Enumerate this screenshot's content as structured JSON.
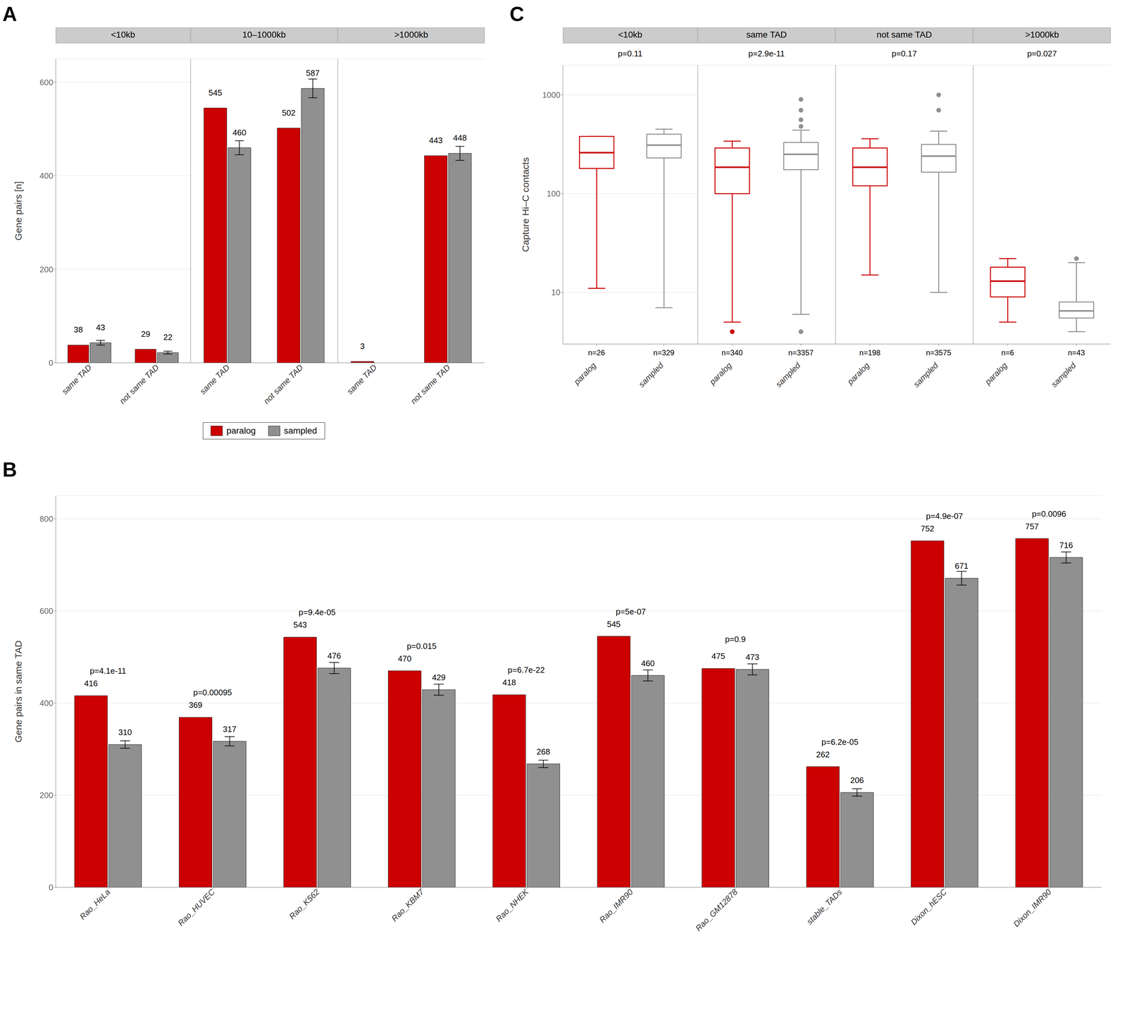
{
  "chart_data": [
    {
      "type": "bar",
      "panel_label": "A",
      "ylabel": "Gene pairs [n]",
      "ylim": [
        0,
        650
      ],
      "yticks": [
        0,
        200,
        400,
        600
      ],
      "grid": true,
      "data_labels": true,
      "legend": "bottom",
      "facets": [
        {
          "title": "<10kb",
          "categories": [
            "same TAD",
            "not same TAD"
          ],
          "series": [
            {
              "name": "paralog",
              "color": "#CC0000",
              "values": [
                38,
                29
              ]
            },
            {
              "name": "sampled",
              "color": "#909090",
              "values": [
                43,
                22
              ],
              "errors": [
                5,
                3
              ]
            }
          ]
        },
        {
          "title": "10–1000kb",
          "tick_labels": "x",
          "categories": [
            "same TAD",
            "not same TAD"
          ],
          "series": [
            {
              "name": "paralog",
              "color": "#CC0000",
              "values": [
                545,
                502
              ]
            },
            {
              "name": "sampled",
              "color": "#909090",
              "values": [
                460,
                587
              ],
              "errors": [
                15,
                20
              ]
            }
          ]
        },
        {
          "title": ">1000kb",
          "tick_labels": "x",
          "categories": [
            "same TAD",
            "not same TAD"
          ],
          "series": [
            {
              "name": "paralog",
              "color": "#CC0000",
              "values": [
                3,
                443
              ]
            },
            {
              "name": "sampled",
              "color": "#909090",
              "values": [
                0,
                448
              ],
              "errors": [
                0,
                15
              ]
            }
          ]
        }
      ]
    },
    {
      "type": "box",
      "panel_label": "C",
      "log": "y",
      "ylabel": "Capture Hi–C contacts",
      "ylim": [
        3,
        2000
      ],
      "yticks": [
        10,
        100,
        1000
      ],
      "grid": true,
      "facets": [
        {
          "title": "<10kb",
          "categories": [
            "paralog",
            "sampled"
          ],
          "colors": [
            "#CC0000",
            "#909090"
          ],
          "annotation": "p=0.11",
          "n_labels": [
            "n=26",
            "n=329"
          ],
          "boxes": [
            {
              "q1": 180,
              "median": 260,
              "q3": 380,
              "whislo": 11,
              "whishi": 380,
              "fliers": []
            },
            {
              "q1": 230,
              "median": 310,
              "q3": 400,
              "whislo": 7,
              "whishi": 450,
              "fliers": []
            }
          ]
        },
        {
          "title": "same TAD",
          "tick_labels": "x",
          "categories": [
            "paralog",
            "sampled"
          ],
          "colors": [
            "#CC0000",
            "#909090"
          ],
          "annotation": "p=2.9e-11",
          "n_labels": [
            "n=340",
            "n=3357"
          ],
          "boxes": [
            {
              "q1": 100,
              "median": 185,
              "q3": 290,
              "whislo": 5,
              "whishi": 340,
              "fliers": [
                4
              ]
            },
            {
              "q1": 175,
              "median": 250,
              "q3": 330,
              "whislo": 6,
              "whishi": 440,
              "fliers": [
                4,
                4,
                480,
                560,
                700,
                900
              ]
            }
          ]
        },
        {
          "title": "not same TAD",
          "tick_labels": "x",
          "categories": [
            "paralog",
            "sampled"
          ],
          "colors": [
            "#CC0000",
            "#909090"
          ],
          "annotation": "p=0.17",
          "n_labels": [
            "n=198",
            "n=3575"
          ],
          "boxes": [
            {
              "q1": 120,
              "median": 185,
              "q3": 290,
              "whislo": 15,
              "whishi": 360,
              "fliers": []
            },
            {
              "q1": 165,
              "median": 240,
              "q3": 315,
              "whislo": 10,
              "whishi": 430,
              "fliers": [
                700,
                1000
              ]
            }
          ]
        },
        {
          "title": ">1000kb",
          "tick_labels": "x",
          "categories": [
            "paralog",
            "sampled"
          ],
          "colors": [
            "#CC0000",
            "#909090"
          ],
          "annotation": "p=0.027",
          "n_labels": [
            "n=6",
            "n=43"
          ],
          "boxes": [
            {
              "q1": 9,
              "median": 13,
              "q3": 18,
              "whislo": 5,
              "whishi": 22,
              "fliers": []
            },
            {
              "q1": 5.5,
              "median": 6.5,
              "q3": 8,
              "whislo": 4,
              "whishi": 20,
              "fliers": [
                22
              ]
            }
          ]
        }
      ]
    },
    {
      "type": "bar",
      "panel_label": "B",
      "ylabel": "Gene pairs in same TAD",
      "ylim": [
        0,
        850
      ],
      "yticks": [
        0,
        200,
        400,
        600,
        800
      ],
      "grid": true,
      "data_labels": true,
      "categories": [
        "Rao_HeLa",
        "Rao_HUVEC",
        "Rao_K562",
        "Rao_KBM7",
        "Rao_NHEK",
        "Rao_IMR90",
        "Rao_GM12878",
        "stable_TADs",
        "Dixon_hESC",
        "Dixon_IMR90"
      ],
      "series": [
        {
          "name": "paralog",
          "color": "#CC0000",
          "values": [
            416,
            369,
            543,
            470,
            418,
            545,
            475,
            262,
            752,
            757
          ]
        },
        {
          "name": "sampled",
          "color": "#909090",
          "values": [
            310,
            317,
            476,
            429,
            268,
            460,
            473,
            206,
            671,
            716
          ],
          "errors": [
            8,
            10,
            12,
            12,
            8,
            12,
            12,
            8,
            15,
            12
          ]
        }
      ],
      "pvalues": [
        "p=4.1e-11",
        "p=0.00095",
        "p=9.4e-05",
        "p=0.015",
        "p=6.7e-22",
        "p=5e-07",
        "p=0.9",
        "p=6.2e-05",
        "p=4.9e-07",
        "p=0.0096"
      ]
    }
  ]
}
